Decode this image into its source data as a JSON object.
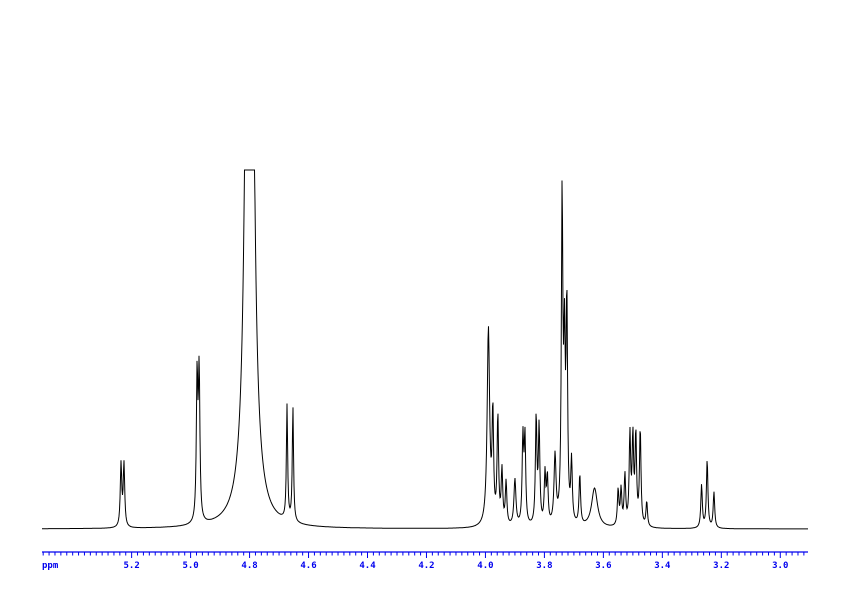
{
  "chart_data": {
    "type": "line",
    "title": "",
    "xlabel": "ppm",
    "ylabel": "",
    "xlim": [
      5.504,
      2.906
    ],
    "x_reversed": true,
    "ylim": [
      0,
      100
    ],
    "grid": false,
    "axis_color": "#0000ee",
    "trace_color": "#000000",
    "x_ticks": [
      5.2,
      5.0,
      4.8,
      4.6,
      4.4,
      4.2,
      4.0,
      3.8,
      3.6,
      3.4,
      3.2,
      3.0
    ],
    "x_tick_labels": [
      "5.2",
      "5.0",
      "4.8",
      "4.6",
      "4.4",
      "4.2",
      "4.0",
      "3.8",
      "3.6",
      "3.4",
      "3.2",
      "3.0"
    ],
    "minor_tick_step": 0.02,
    "peaks": [
      {
        "ppm": 5.236,
        "intensity": 17.5,
        "width": 0.003
      },
      {
        "ppm": 5.226,
        "intensity": 17.5,
        "width": 0.003
      },
      {
        "ppm": 4.978,
        "intensity": 40,
        "width": 0.003
      },
      {
        "ppm": 4.971,
        "intensity": 41,
        "width": 0.003
      },
      {
        "ppm": 4.8,
        "intensity": 400,
        "width": 0.01
      },
      {
        "ppm": 4.673,
        "intensity": 32,
        "width": 0.0025
      },
      {
        "ppm": 4.653,
        "intensity": 32,
        "width": 0.0025
      },
      {
        "ppm": 3.99,
        "intensity": 55,
        "width": 0.005
      },
      {
        "ppm": 3.975,
        "intensity": 30,
        "width": 0.003
      },
      {
        "ppm": 3.958,
        "intensity": 30,
        "width": 0.003
      },
      {
        "ppm": 3.944,
        "intensity": 15,
        "width": 0.003
      },
      {
        "ppm": 3.93,
        "intensity": 12,
        "width": 0.003
      },
      {
        "ppm": 3.9,
        "intensity": 13,
        "width": 0.004
      },
      {
        "ppm": 3.873,
        "intensity": 24,
        "width": 0.003
      },
      {
        "ppm": 3.866,
        "intensity": 24,
        "width": 0.003
      },
      {
        "ppm": 3.828,
        "intensity": 30,
        "width": 0.003
      },
      {
        "ppm": 3.818,
        "intensity": 27,
        "width": 0.003
      },
      {
        "ppm": 3.798,
        "intensity": 14,
        "width": 0.003
      },
      {
        "ppm": 3.79,
        "intensity": 13,
        "width": 0.003
      },
      {
        "ppm": 3.764,
        "intensity": 19,
        "width": 0.004
      },
      {
        "ppm": 3.74,
        "intensity": 90,
        "width": 0.003
      },
      {
        "ppm": 3.732,
        "intensity": 45,
        "width": 0.003
      },
      {
        "ppm": 3.724,
        "intensity": 60,
        "width": 0.003
      },
      {
        "ppm": 3.708,
        "intensity": 17,
        "width": 0.003
      },
      {
        "ppm": 3.68,
        "intensity": 14,
        "width": 0.003
      },
      {
        "ppm": 3.63,
        "intensity": 11,
        "width": 0.012
      },
      {
        "ppm": 3.55,
        "intensity": 10,
        "width": 0.003
      },
      {
        "ppm": 3.54,
        "intensity": 10,
        "width": 0.003
      },
      {
        "ppm": 3.527,
        "intensity": 14,
        "width": 0.003
      },
      {
        "ppm": 3.51,
        "intensity": 25,
        "width": 0.003
      },
      {
        "ppm": 3.5,
        "intensity": 24,
        "width": 0.003
      },
      {
        "ppm": 3.49,
        "intensity": 25,
        "width": 0.003
      },
      {
        "ppm": 3.475,
        "intensity": 27,
        "width": 0.003
      },
      {
        "ppm": 3.453,
        "intensity": 7,
        "width": 0.003
      },
      {
        "ppm": 3.267,
        "intensity": 12,
        "width": 0.003
      },
      {
        "ppm": 3.248,
        "intensity": 19,
        "width": 0.003
      },
      {
        "ppm": 3.225,
        "intensity": 10,
        "width": 0.003
      }
    ]
  }
}
